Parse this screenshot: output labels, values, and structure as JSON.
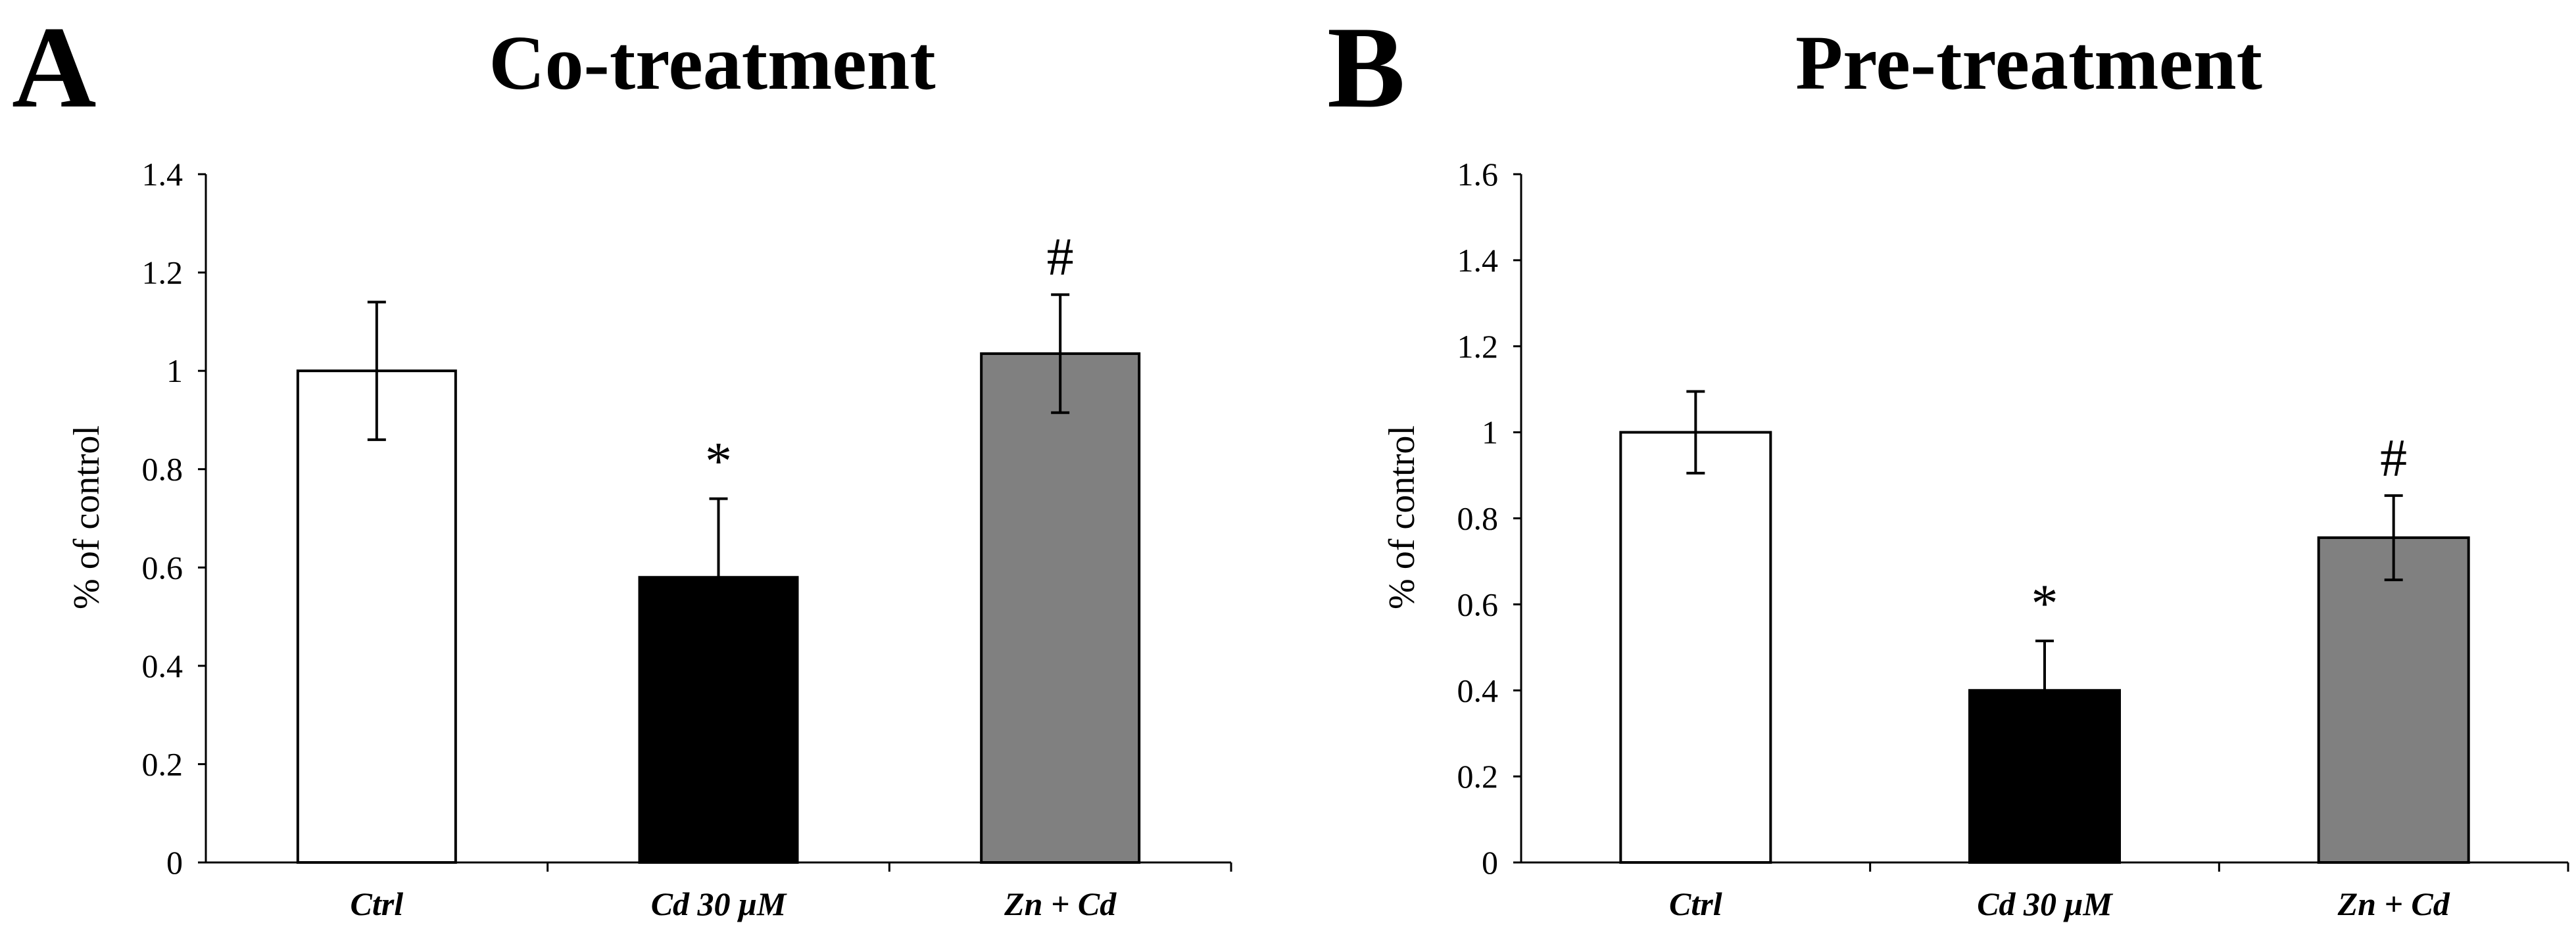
{
  "chart_data": [
    {
      "type": "bar",
      "panel_label": "A",
      "title": "Co-treatment",
      "ylabel": "% of control",
      "xlabel": "",
      "ylim": [
        0,
        1.4
      ],
      "yticks": [
        "0",
        "0.2",
        "0.4",
        "0.6",
        "0.8",
        "1",
        "1.2",
        "1.4"
      ],
      "categories": [
        "Ctrl",
        "Cd 30 μM",
        "Zn + Cd"
      ],
      "values": [
        1.0,
        0.58,
        1.035
      ],
      "errors": [
        0.14,
        0.16,
        0.12
      ],
      "colors": [
        "#ffffff",
        "#000000",
        "#808080"
      ],
      "annotations": [
        "",
        "*",
        "#"
      ]
    },
    {
      "type": "bar",
      "panel_label": "B",
      "title": "Pre-treatment",
      "ylabel": "% of control",
      "xlabel": "",
      "ylim": [
        0,
        1.6
      ],
      "yticks": [
        "0",
        "0.2",
        "0.4",
        "0.6",
        "0.8",
        "1",
        "1.2",
        "1.4",
        "1.6"
      ],
      "categories": [
        "Ctrl",
        "Cd 30 μM",
        "Zn + Cd"
      ],
      "values": [
        1.0,
        0.4,
        0.755
      ],
      "errors": [
        0.095,
        0.115,
        0.098
      ],
      "colors": [
        "#ffffff",
        "#000000",
        "#808080"
      ],
      "annotations": [
        "",
        "*",
        "#"
      ]
    }
  ]
}
